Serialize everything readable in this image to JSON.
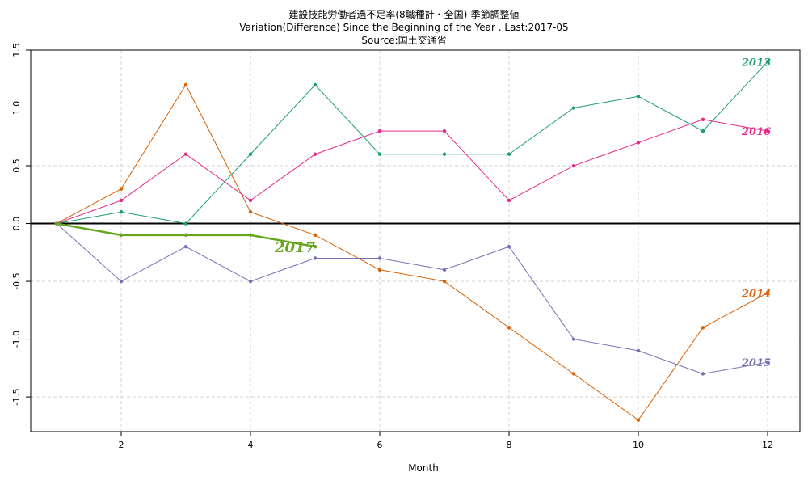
{
  "chart_data": {
    "type": "line",
    "title": "建設技能労働者過不足率(8職種計・全国)-季節調整値",
    "subtitle": "Variation(Difference) Since the Beginning of the Year . Last:2017-05",
    "source": "Source:国土交通省",
    "xlabel": "Month",
    "ylabel": "",
    "xlim": [
      0.6,
      12.5
    ],
    "ylim": [
      -1.8,
      1.5
    ],
    "x_ticks": [
      2,
      4,
      6,
      8,
      10,
      12
    ],
    "y_ticks": [
      -1.5,
      -1.0,
      -0.5,
      0.0,
      0.5,
      1.0,
      1.5
    ],
    "y_tick_labels": [
      "-1.5",
      "-1.0",
      "-0.5",
      "0.0",
      "0.5",
      "1.0",
      "1.5"
    ],
    "grid": true,
    "zero_line": true,
    "series": [
      {
        "name": "2013",
        "color": "#1b9e77",
        "x": [
          1,
          2,
          3,
          4,
          5,
          6,
          7,
          8,
          9,
          10,
          11,
          12
        ],
        "values": [
          0,
          0.1,
          0,
          0.6,
          1.2,
          0.6,
          0.6,
          0.6,
          1.0,
          1.1,
          0.8,
          1.4
        ]
      },
      {
        "name": "2014",
        "color": "#d95f02",
        "x": [
          1,
          2,
          3,
          4,
          5,
          6,
          7,
          8,
          9,
          10,
          11,
          12
        ],
        "values": [
          0,
          0.3,
          1.2,
          0.1,
          -0.1,
          -0.4,
          -0.5,
          -0.9,
          -1.3,
          -1.7,
          -0.9,
          -0.6
        ]
      },
      {
        "name": "2015",
        "color": "#7570b3",
        "x": [
          1,
          2,
          3,
          4,
          5,
          6,
          7,
          8,
          9,
          10,
          11,
          12
        ],
        "values": [
          0,
          -0.5,
          -0.2,
          -0.5,
          -0.3,
          -0.3,
          -0.4,
          -0.2,
          -1.0,
          -1.1,
          -1.3,
          -1.2
        ]
      },
      {
        "name": "2016",
        "color": "#e7298a",
        "x": [
          1,
          2,
          3,
          4,
          5,
          6,
          7,
          8,
          9,
          10,
          11,
          12
        ],
        "values": [
          0,
          0.2,
          0.6,
          0.2,
          0.6,
          0.8,
          0.8,
          0.2,
          0.5,
          0.7,
          0.9,
          0.8
        ]
      },
      {
        "name": "2017",
        "color": "#66a61e",
        "x": [
          1,
          2,
          3,
          4,
          5
        ],
        "values": [
          0,
          -0.1,
          -0.1,
          -0.1,
          -0.2
        ]
      }
    ]
  }
}
